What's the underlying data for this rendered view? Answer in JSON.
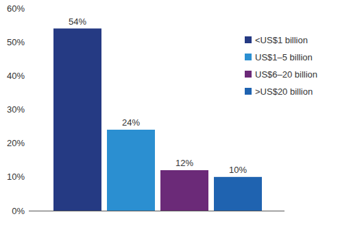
{
  "chart_data": {
    "type": "bar",
    "categories": [
      "<US$1 billion",
      "US$1–5 billion",
      "US$6–20 billion",
      ">US$20 billion"
    ],
    "values": [
      54,
      24,
      12,
      10
    ],
    "value_labels": [
      "54%",
      "24%",
      "12%",
      "10%"
    ],
    "colors": [
      "#253a83",
      "#2b8fd1",
      "#6b2a78",
      "#1f63b0"
    ],
    "ylim": [
      0,
      60
    ],
    "yticks": [
      {
        "value": 0,
        "label": "0%"
      },
      {
        "value": 10,
        "label": "10%"
      },
      {
        "value": 20,
        "label": "20%"
      },
      {
        "value": 30,
        "label": "30%"
      },
      {
        "value": 40,
        "label": "40%"
      },
      {
        "value": 50,
        "label": "50%"
      },
      {
        "value": 60,
        "label": "60%"
      }
    ],
    "grid": false,
    "data_labels": true,
    "legend": "top-right",
    "tick_labels": "y"
  }
}
